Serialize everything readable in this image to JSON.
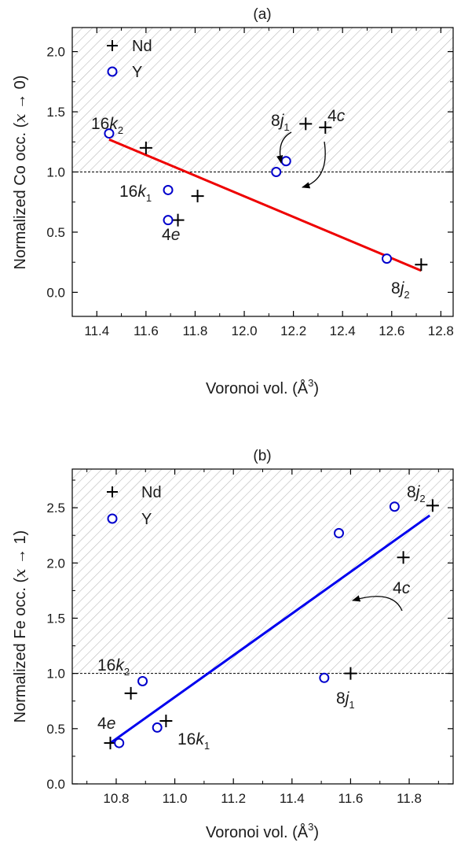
{
  "chart_data": [
    {
      "panel_title": "(a)",
      "type": "scatter",
      "xlabel_text": "Voronoi vol. (Å",
      "xlabel_sup": "3",
      "xlabel_close": ")",
      "ylabel_text": "Normalized Co occ. (",
      "ylabel_var": "x",
      "ylabel_rest": " → 0)",
      "xlim": [
        11.3,
        12.85
      ],
      "ylim": [
        -0.2,
        2.2
      ],
      "xticks": [
        11.4,
        11.6,
        11.8,
        12.0,
        12.2,
        12.4,
        12.6,
        12.8
      ],
      "xtick_labels": [
        "11.4",
        "11.6",
        "11.8",
        "12.0",
        "12.2",
        "12.4",
        "12.6",
        "12.8"
      ],
      "yticks": [
        0.0,
        0.5,
        1.0,
        1.5,
        2.0
      ],
      "ytick_labels": [
        "0.0",
        "0.5",
        "1.0",
        "1.5",
        "2.0"
      ],
      "reference_y": 1.0,
      "shaded_above_reference": true,
      "legend": {
        "position": "top-left",
        "entries": [
          {
            "label": "Nd",
            "marker": "plus"
          },
          {
            "label": "Y",
            "marker": "circle"
          }
        ]
      },
      "series": [
        {
          "name": "Nd",
          "marker": "plus",
          "color": "#000000",
          "points": [
            {
              "x": 11.6,
              "y": 1.2
            },
            {
              "x": 11.81,
              "y": 0.8
            },
            {
              "x": 11.73,
              "y": 0.6
            },
            {
              "x": 12.25,
              "y": 1.4
            },
            {
              "x": 12.33,
              "y": 1.37
            },
            {
              "x": 12.72,
              "y": 0.23
            }
          ]
        },
        {
          "name": "Y",
          "marker": "circle",
          "color": "#0000cc",
          "points": [
            {
              "x": 11.45,
              "y": 1.32
            },
            {
              "x": 11.69,
              "y": 0.85
            },
            {
              "x": 11.69,
              "y": 0.6
            },
            {
              "x": 12.13,
              "y": 1.0
            },
            {
              "x": 12.17,
              "y": 1.09
            },
            {
              "x": 12.58,
              "y": 0.28
            }
          ]
        }
      ],
      "fit_line": {
        "color": "#ee0000",
        "x": [
          11.45,
          12.72
        ],
        "y": [
          1.27,
          0.18
        ]
      },
      "annotations": [
        {
          "base": "16",
          "italic": "k",
          "sub": "2"
        },
        {
          "base": "16",
          "italic": "k",
          "sub": "1"
        },
        {
          "base": "4",
          "italic": "e",
          "sub": ""
        },
        {
          "base": "8",
          "italic": "j",
          "sub": "1"
        },
        {
          "base": "4",
          "italic": "c",
          "sub": ""
        },
        {
          "base": "8",
          "italic": "j",
          "sub": "2"
        }
      ]
    },
    {
      "panel_title": "(b)",
      "type": "scatter",
      "xlabel_text": "Voronoi vol. (Å",
      "xlabel_sup": "3",
      "xlabel_close": ")",
      "ylabel_text": "Normalized Fe occ. (",
      "ylabel_var": "x",
      "ylabel_rest": " → 1)",
      "xlim": [
        10.65,
        11.95
      ],
      "ylim": [
        0.0,
        2.85
      ],
      "xticks": [
        10.8,
        11.0,
        11.2,
        11.4,
        11.6,
        11.8
      ],
      "xtick_labels": [
        "10.8",
        "11.0",
        "11.2",
        "11.4",
        "11.6",
        "11.8"
      ],
      "yticks": [
        0.0,
        0.5,
        1.0,
        1.5,
        2.0,
        2.5
      ],
      "ytick_labels": [
        "0.0",
        "0.5",
        "1.0",
        "1.5",
        "2.0",
        "2.5"
      ],
      "reference_y": 1.0,
      "shaded_above_reference": true,
      "legend": {
        "position": "top-left",
        "entries": [
          {
            "label": "Nd",
            "marker": "plus"
          },
          {
            "label": "Y",
            "marker": "circle"
          }
        ]
      },
      "series": [
        {
          "name": "Nd",
          "marker": "plus",
          "color": "#000000",
          "points": [
            {
              "x": 10.78,
              "y": 0.37
            },
            {
              "x": 10.85,
              "y": 0.82
            },
            {
              "x": 10.97,
              "y": 0.57
            },
            {
              "x": 11.6,
              "y": 1.0
            },
            {
              "x": 11.78,
              "y": 2.05
            },
            {
              "x": 11.88,
              "y": 2.52
            }
          ]
        },
        {
          "name": "Y",
          "marker": "circle",
          "color": "#0000cc",
          "points": [
            {
              "x": 10.81,
              "y": 0.37
            },
            {
              "x": 10.89,
              "y": 0.93
            },
            {
              "x": 10.94,
              "y": 0.51
            },
            {
              "x": 11.51,
              "y": 0.96
            },
            {
              "x": 11.56,
              "y": 2.27
            },
            {
              "x": 11.75,
              "y": 2.51
            }
          ]
        }
      ],
      "fit_line": {
        "color": "#0000ee",
        "x": [
          10.78,
          11.87
        ],
        "y": [
          0.37,
          2.43
        ]
      },
      "annotations": [
        {
          "base": "8",
          "italic": "j",
          "sub": "2"
        },
        {
          "base": "4",
          "italic": "c",
          "sub": ""
        },
        {
          "base": "16",
          "italic": "k",
          "sub": "2"
        },
        {
          "base": "8",
          "italic": "j",
          "sub": "1"
        },
        {
          "base": "4",
          "italic": "e",
          "sub": ""
        },
        {
          "base": "16",
          "italic": "k",
          "sub": "1"
        }
      ]
    }
  ]
}
